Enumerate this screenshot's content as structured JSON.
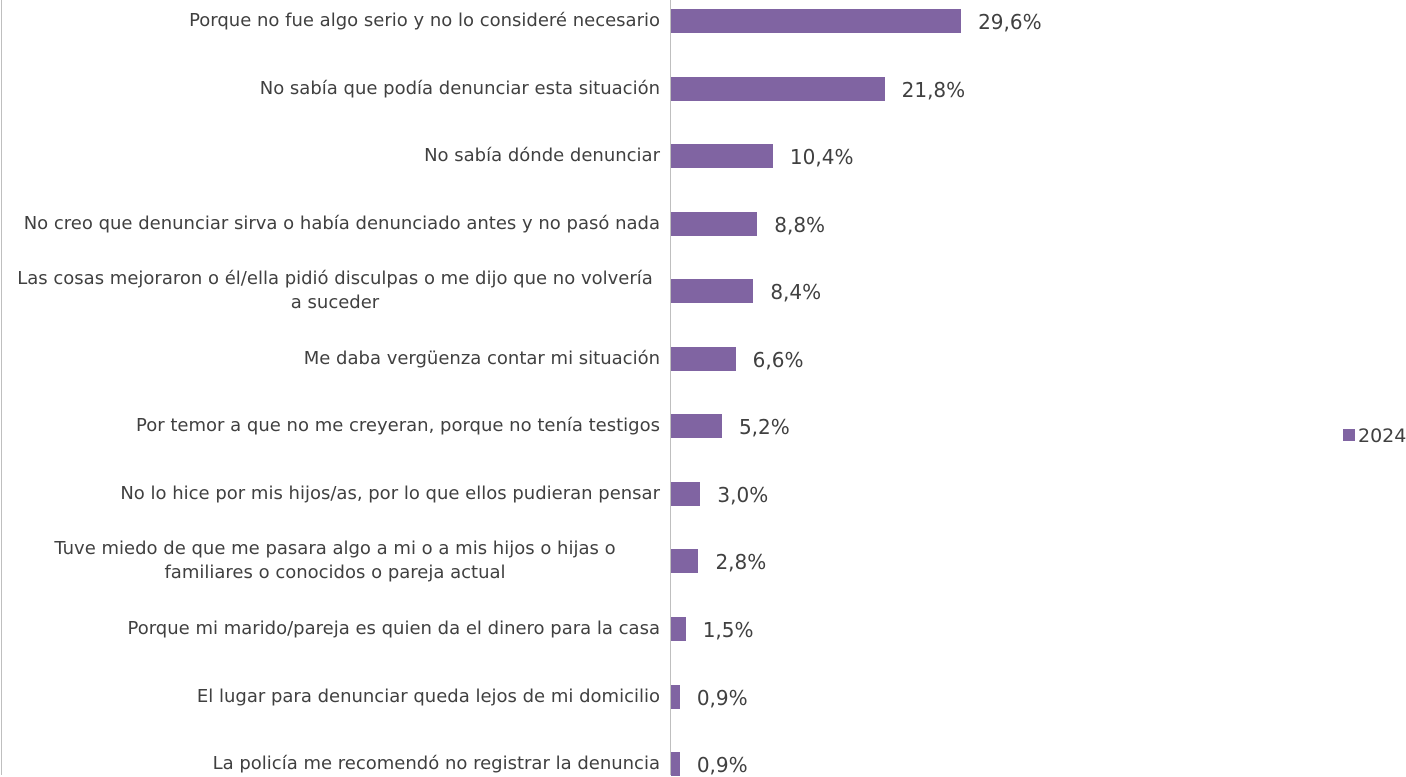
{
  "chart_data": {
    "type": "bar",
    "orientation": "horizontal",
    "categories": [
      "Porque no fue algo serio y no lo consideré necesario",
      "No sabía que podía denunciar esta situación",
      "No sabía dónde denunciar",
      "No creo que denunciar sirva o había denunciado antes y no pasó nada",
      "Las cosas mejoraron o él/ella pidió disculpas o me dijo que no volvería a suceder",
      "Me daba vergüenza contar mi situación",
      "Por temor a que no me creyeran, porque no tenía testigos",
      "No lo hice por mis hijos/as, por lo que ellos pudieran pensar",
      "Tuve miedo de que me pasara algo a mi o a mis hijos o hijas o familiares o conocidos o pareja actual",
      "Porque mi marido/pareja es quien da el dinero para la casa",
      "El lugar para denunciar queda lejos de mi domicilio",
      "La policía me recomendó no registrar la denuncia"
    ],
    "series": [
      {
        "name": "2024",
        "color": "#8064a2",
        "values": [
          29.6,
          21.8,
          10.4,
          8.8,
          8.4,
          6.6,
          5.2,
          3.0,
          2.8,
          1.5,
          0.9,
          0.9
        ],
        "value_labels": [
          "29,6%",
          "21,8%",
          "10,4%",
          "8,8%",
          "8,4%",
          "6,6%",
          "5,2%",
          "3,0%",
          "2,8%",
          "1,5%",
          "0,9%",
          "0,9%"
        ]
      }
    ],
    "legend": "right"
  }
}
